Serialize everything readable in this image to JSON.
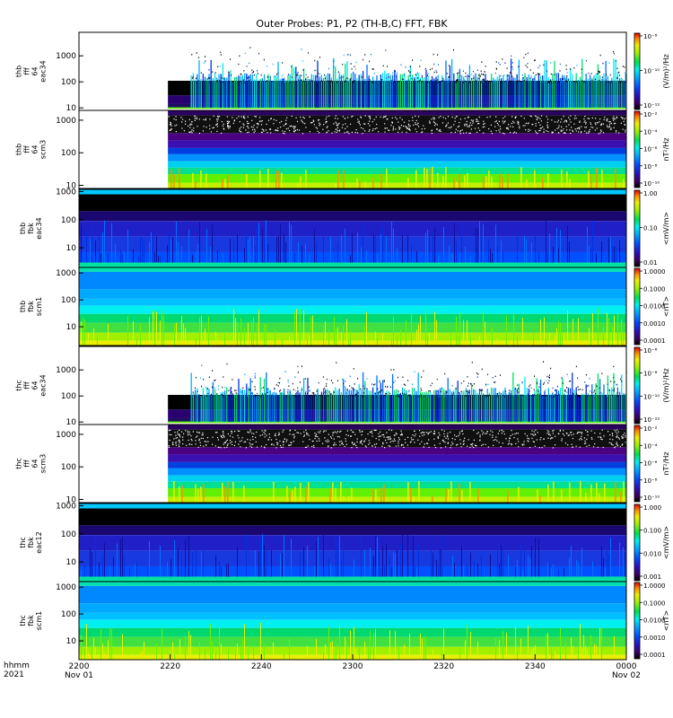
{
  "title": "Outer Probes: P1, P2 (TH-B,C) FFT, FBK",
  "xaxis": {
    "row_label_1": "hhmm",
    "row_label_2": "2021",
    "ticks": [
      {
        "label": "2200",
        "sub": "Nov 01",
        "minutes": 0
      },
      {
        "label": "2220",
        "sub": "",
        "minutes": 20
      },
      {
        "label": "2240",
        "sub": "",
        "minutes": 40
      },
      {
        "label": "2300",
        "sub": "",
        "minutes": 60
      },
      {
        "label": "2320",
        "sub": "",
        "minutes": 80
      },
      {
        "label": "2340",
        "sub": "",
        "minutes": 100
      },
      {
        "label": "0000",
        "sub": "Nov 02",
        "minutes": 120
      }
    ],
    "range_minutes": [
      0,
      120
    ]
  },
  "panels": [
    {
      "id": "thb-fff-eac34",
      "label_lines": [
        "thb",
        "fff",
        "64",
        "eac34"
      ],
      "yticks": [
        "1000",
        "100",
        "10"
      ],
      "ylim": [
        8,
        8000
      ],
      "yscale": "log",
      "cbar_ticks": [
        "10⁻⁸",
        "10⁻¹⁰",
        "10⁻¹²"
      ],
      "cbar_label": "(V/m)²/Hz",
      "style": "fff_e",
      "data_start_min": 19.5,
      "dense_start_min": 24.5
    },
    {
      "id": "thb-fff-scm3",
      "label_lines": [
        "thb",
        "fff",
        "64",
        "scm3"
      ],
      "yticks": [
        "1000",
        "100",
        "10"
      ],
      "ylim": [
        8,
        2000
      ],
      "yscale": "log",
      "cbar_ticks": [
        "10⁻²",
        "10⁻⁴",
        "10⁻⁶",
        "10⁻⁸",
        "10⁻¹⁰"
      ],
      "cbar_label": "nT²/Hz",
      "style": "fff_b",
      "data_start_min": 19.5
    },
    {
      "id": "thb-fbk-eac34",
      "label_lines": [
        "thb",
        "fbk",
        "eac34"
      ],
      "yticks": [
        "1000",
        "100",
        "10"
      ],
      "ylim": [
        2,
        1200
      ],
      "yscale": "log",
      "cbar_ticks": [
        "1.00",
        "0.10",
        "0.01"
      ],
      "cbar_label": "<mV/m>",
      "style": "fbk_e",
      "data_start_min": 0
    },
    {
      "id": "thb-fbk-scm1",
      "label_lines": [
        "thb",
        "fbk",
        "scm1"
      ],
      "yticks": [
        "1000",
        "100",
        "10"
      ],
      "ylim": [
        2,
        1600
      ],
      "yscale": "log",
      "cbar_ticks": [
        "1.0000",
        "0.1000",
        "0.0100",
        "0.0010",
        "0.0001"
      ],
      "cbar_label": "<nT>",
      "style": "fbk_b",
      "data_start_min": 0
    },
    {
      "id": "thc-fff-eac34",
      "label_lines": [
        "thc",
        "fff",
        "64",
        "eac34"
      ],
      "yticks": [
        "1000",
        "100",
        "10"
      ],
      "ylim": [
        8,
        8000
      ],
      "yscale": "log",
      "cbar_ticks": [
        "10⁻⁶",
        "10⁻⁸",
        "10⁻¹⁰",
        "10⁻¹²"
      ],
      "cbar_label": "(V/m)²/Hz",
      "style": "fff_e",
      "data_start_min": 19.5,
      "dense_start_min": 24.5
    },
    {
      "id": "thc-fff-scm3",
      "label_lines": [
        "thc",
        "fff",
        "64",
        "scm3"
      ],
      "yticks": [
        "1000",
        "100",
        "10"
      ],
      "ylim": [
        8,
        2000
      ],
      "yscale": "log",
      "cbar_ticks": [
        "10⁻²",
        "10⁻⁴",
        "10⁻⁶",
        "10⁻⁸",
        "10⁻¹⁰"
      ],
      "cbar_label": "nT²/Hz",
      "style": "fff_b",
      "data_start_min": 19.5
    },
    {
      "id": "thc-fbk-eac12",
      "label_lines": [
        "thc",
        "fbk",
        "eac12"
      ],
      "yticks": [
        "1000",
        "100",
        "10"
      ],
      "ylim": [
        2,
        1200
      ],
      "yscale": "log",
      "cbar_ticks": [
        "1.000",
        "0.100",
        "0.010",
        "0.001"
      ],
      "cbar_label": "<mV/m>",
      "style": "fbk_e",
      "data_start_min": 0
    },
    {
      "id": "thc-fbk-scm1",
      "label_lines": [
        "thc",
        "fbk",
        "scm1"
      ],
      "yticks": [
        "1000",
        "100",
        "10"
      ],
      "ylim": [
        2,
        1600
      ],
      "yscale": "log",
      "cbar_ticks": [
        "1.0000",
        "0.1000",
        "0.0100",
        "0.0010",
        "0.0001"
      ],
      "cbar_label": "<nT>",
      "style": "fbk_b",
      "data_start_min": 0
    }
  ],
  "chart_data": {
    "type": "heatmap",
    "title": "Outer Probes: P1, P2 (TH-B,C) FFT, FBK",
    "x_unit": "minutes after 2021-11-01 22:00 UT",
    "xlim": [
      0,
      120
    ],
    "xticks": [
      "2200",
      "2220",
      "2240",
      "2300",
      "2320",
      "2340",
      "0000"
    ],
    "date_labels": [
      "Nov 01",
      "Nov 02"
    ],
    "series": [
      {
        "name": "thb fff 64 eac34",
        "quantity": "(V/m)²/Hz",
        "y_unit": "Hz",
        "data_start": "2219"
      },
      {
        "name": "thb fff 64 scm3",
        "quantity": "nT²/Hz",
        "y_unit": "Hz",
        "data_start": "2219"
      },
      {
        "name": "thb fbk eac34",
        "quantity": "<mV/m>",
        "y_unit": "Hz",
        "data_start": "2200"
      },
      {
        "name": "thb fbk scm1",
        "quantity": "<nT>",
        "y_unit": "Hz",
        "data_start": "2200"
      },
      {
        "name": "thc fff 64 eac34",
        "quantity": "(V/m)²/Hz",
        "y_unit": "Hz",
        "data_start": "2219"
      },
      {
        "name": "thc fff 64 scm3",
        "quantity": "nT²/Hz",
        "y_unit": "Hz",
        "data_start": "2219"
      },
      {
        "name": "thc fbk eac12",
        "quantity": "<mV/m>",
        "y_unit": "Hz",
        "data_start": "2200"
      },
      {
        "name": "thc fbk scm1",
        "quantity": "<nT>",
        "y_unit": "Hz",
        "data_start": "2200"
      }
    ]
  }
}
